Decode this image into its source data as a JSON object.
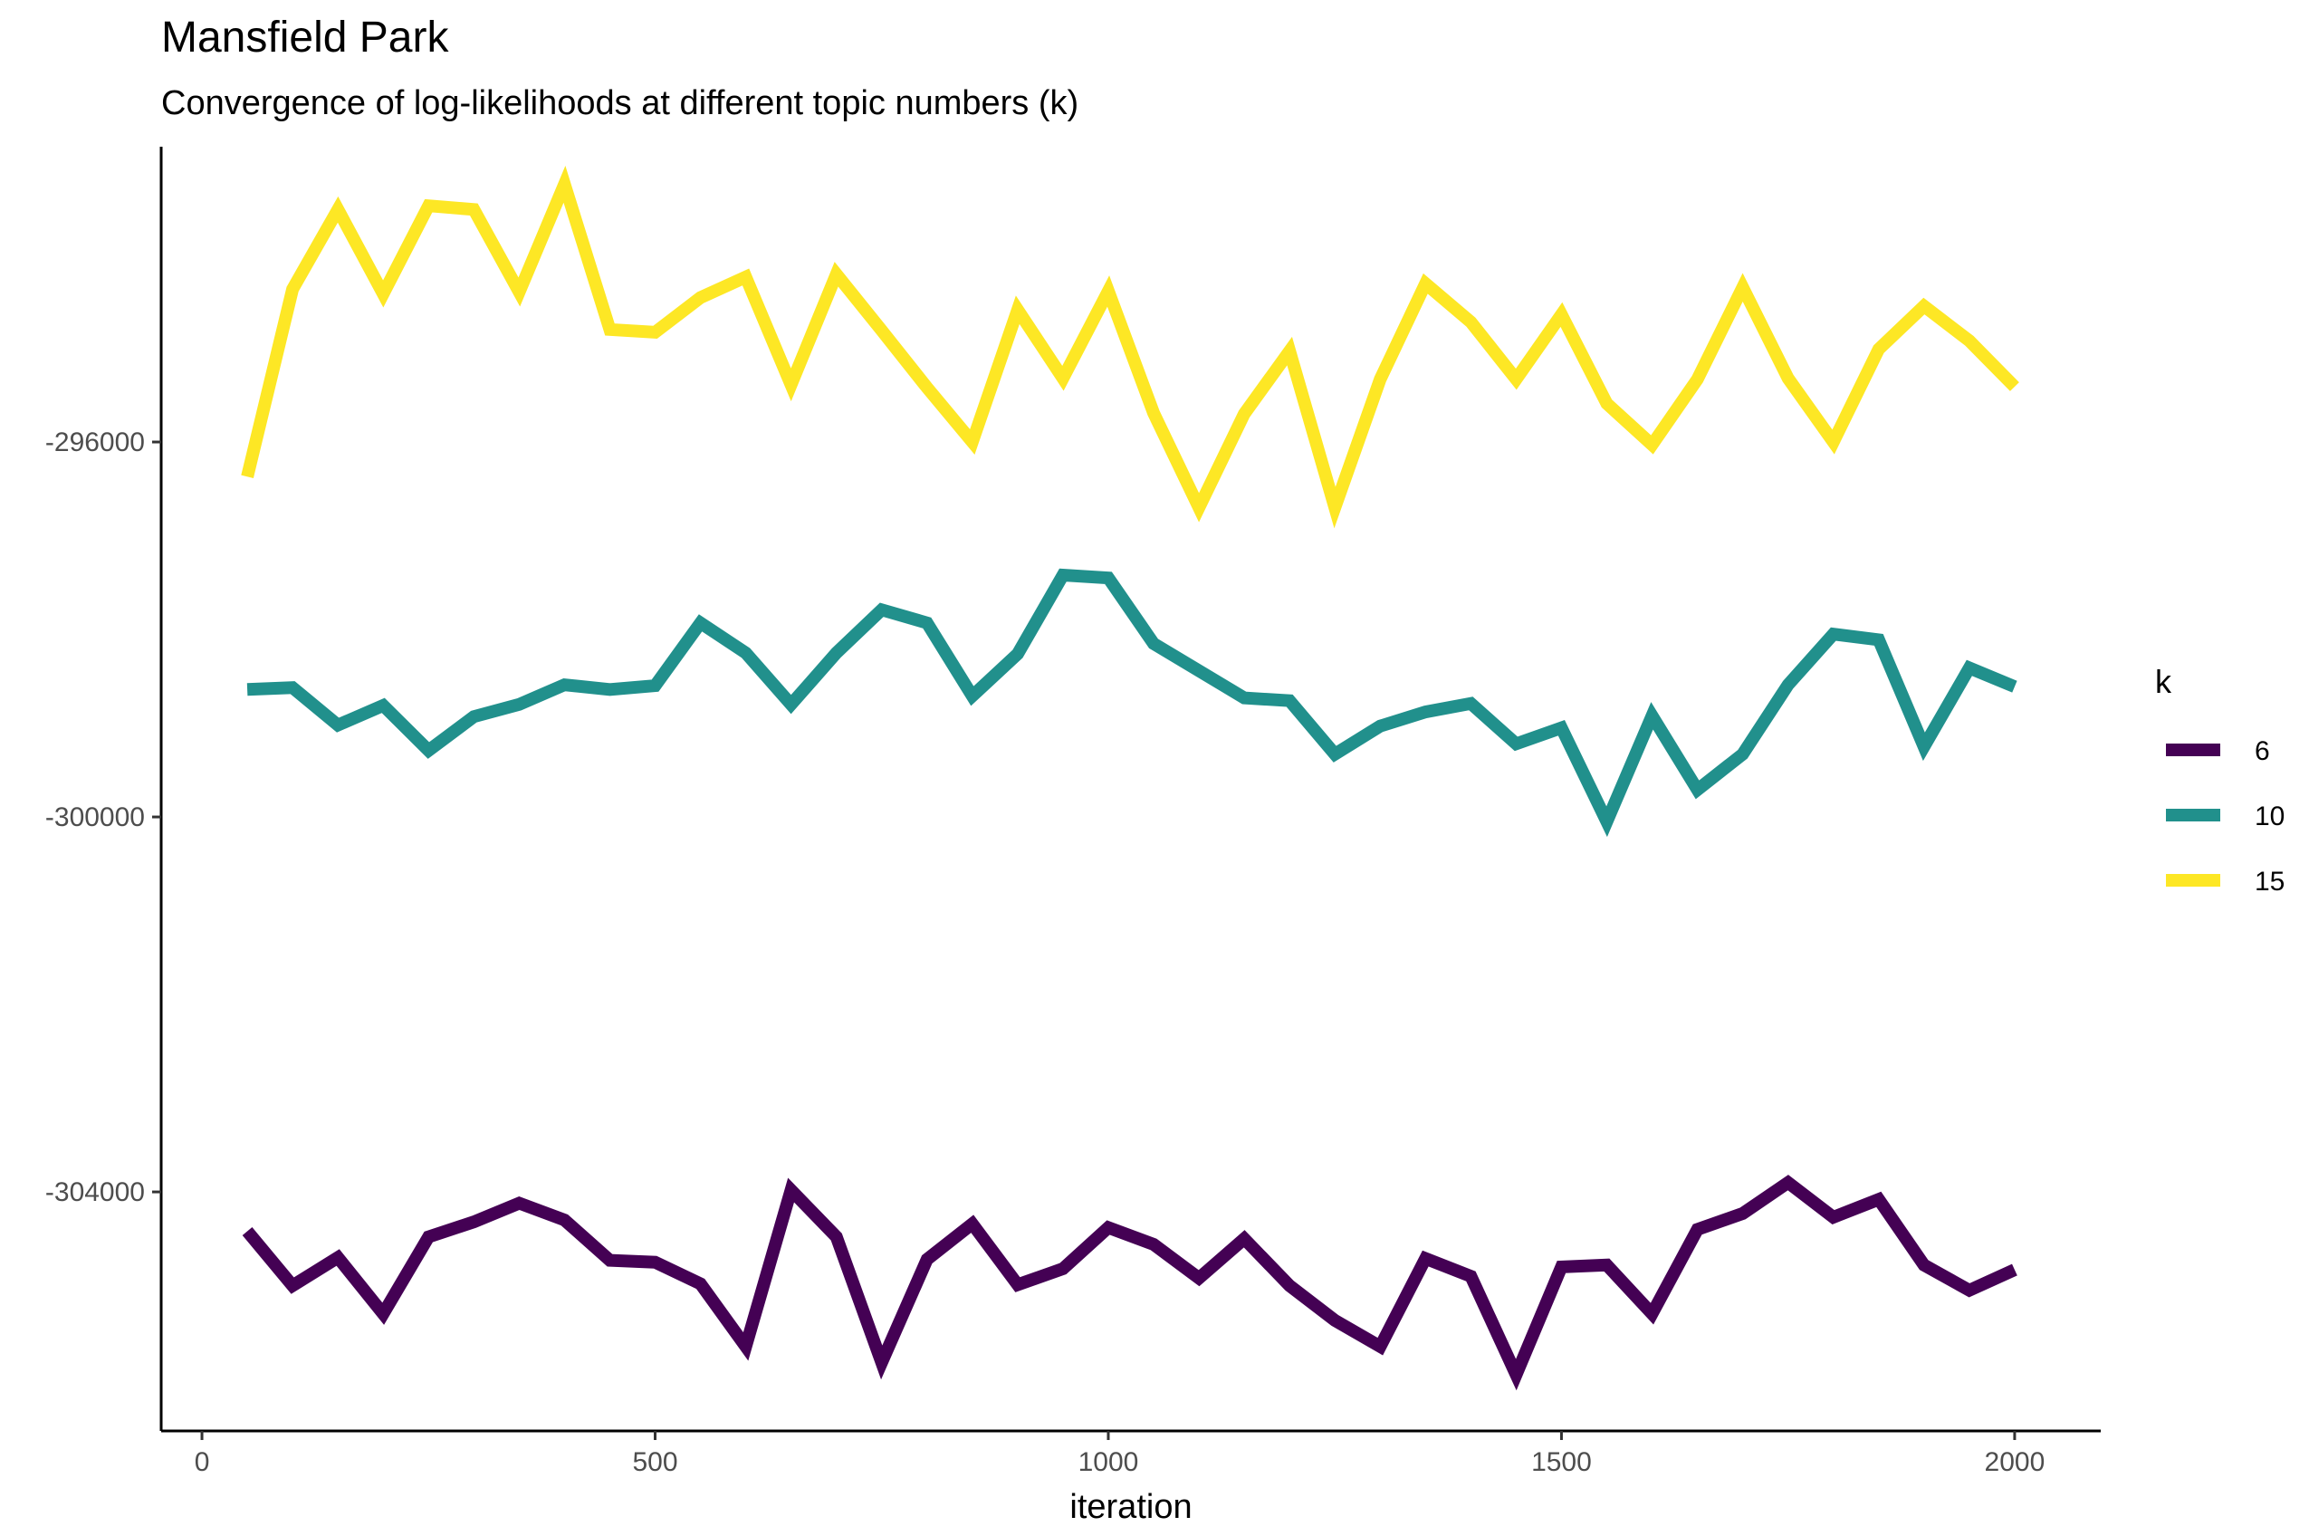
{
  "title": "Mansfield Park",
  "subtitle": "Convergence of log-likelihoods at different topic numbers (k)",
  "chart_data": {
    "type": "line",
    "title": "Mansfield Park",
    "subtitle": "Convergence of log-likelihoods at different topic numbers (k)",
    "xlabel": "iteration",
    "ylabel": "",
    "xlim": [
      -45,
      2095
    ],
    "ylim": [
      -306550,
      -292850
    ],
    "x_ticks": [
      0,
      500,
      1000,
      1500,
      2000
    ],
    "x_tick_labels": [
      "0",
      "500",
      "1000",
      "1500",
      "2000"
    ],
    "y_ticks": [
      -296000,
      -300000,
      -304000
    ],
    "y_tick_labels": [
      "-296000",
      "-300000",
      "-304000"
    ],
    "grid": false,
    "legend": {
      "title": "k",
      "position": "right"
    },
    "x": [
      50,
      100,
      150,
      200,
      250,
      300,
      350,
      400,
      450,
      500,
      550,
      600,
      650,
      700,
      750,
      800,
      850,
      900,
      950,
      1000,
      1050,
      1100,
      1150,
      1200,
      1250,
      1300,
      1350,
      1400,
      1450,
      1500,
      1550,
      1600,
      1650,
      1700,
      1750,
      1800,
      1850,
      1900,
      1950,
      2000
    ],
    "series": [
      {
        "name": "6",
        "color": "#440154",
        "values": [
          -304420,
          -305000,
          -304700,
          -305300,
          -304480,
          -304320,
          -304120,
          -304300,
          -304730,
          -304750,
          -304980,
          -305650,
          -303980,
          -304480,
          -305820,
          -304720,
          -304340,
          -304990,
          -304820,
          -304380,
          -304560,
          -304920,
          -304500,
          -305000,
          -305370,
          -305650,
          -304710,
          -304900,
          -305950,
          -304800,
          -304780,
          -305300,
          -304400,
          -304230,
          -303900,
          -304270,
          -304080,
          -304780,
          -305050,
          -304830
        ]
      },
      {
        "name": "10",
        "color": "#21908C",
        "values": [
          -298640,
          -298620,
          -299020,
          -298810,
          -299290,
          -298930,
          -298800,
          -298590,
          -298640,
          -298600,
          -297930,
          -298250,
          -298800,
          -298250,
          -297790,
          -297930,
          -298710,
          -298260,
          -297420,
          -297450,
          -298150,
          -298440,
          -298730,
          -298760,
          -299330,
          -299030,
          -298880,
          -298790,
          -299220,
          -299050,
          -300050,
          -298920,
          -299710,
          -299330,
          -298590,
          -298050,
          -298110,
          -299250,
          -298410,
          -298610
        ]
      },
      {
        "name": "15",
        "color": "#FDE725",
        "values": [
          -296370,
          -294370,
          -293520,
          -294420,
          -293480,
          -293520,
          -294400,
          -293250,
          -294800,
          -294830,
          -294460,
          -294240,
          -295390,
          -294210,
          -294810,
          -295420,
          -296000,
          -294590,
          -295320,
          -294390,
          -295690,
          -296700,
          -295700,
          -295030,
          -296700,
          -295330,
          -294310,
          -294720,
          -295330,
          -294640,
          -295590,
          -296030,
          -295330,
          -294350,
          -295320,
          -296000,
          -295010,
          -294550,
          -294920,
          -295410
        ]
      }
    ]
  }
}
